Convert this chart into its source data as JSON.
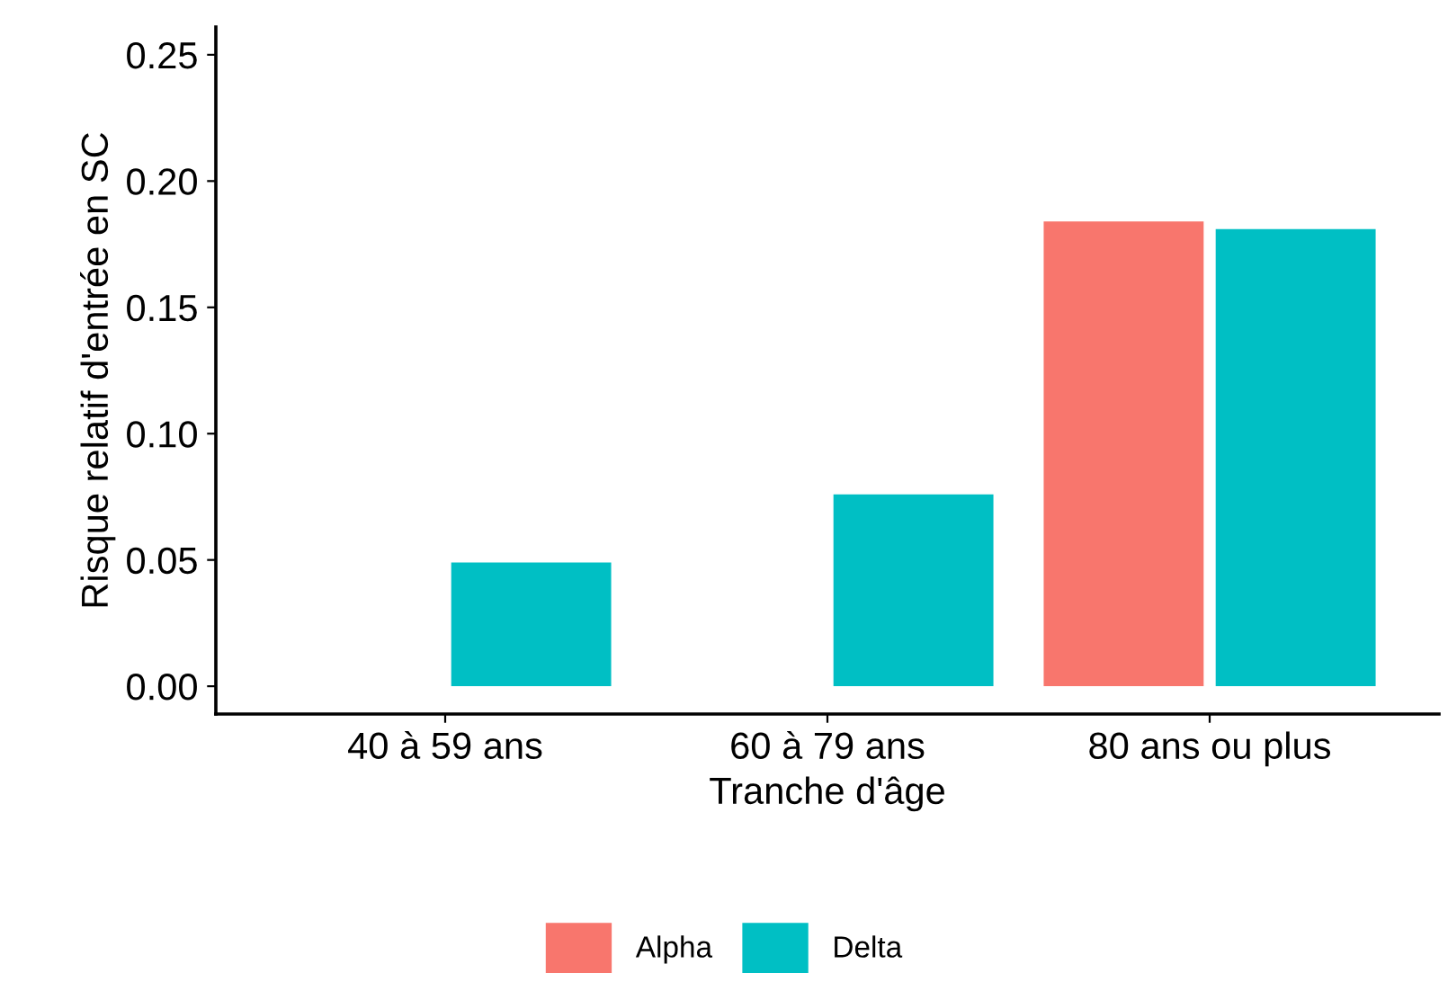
{
  "chart_data": {
    "type": "bar",
    "xlabel": "Tranche d'âge",
    "ylabel": "Risque relatif d'entrée en SC",
    "categories": [
      "40 à 59 ans",
      "60 à 79 ans",
      "80 ans ou plus"
    ],
    "series": [
      {
        "name": "Alpha",
        "color": "#f8766d",
        "values": [
          null,
          null,
          0.184
        ]
      },
      {
        "name": "Delta",
        "color": "#00bfc4",
        "values": [
          0.049,
          0.076,
          0.181
        ]
      }
    ],
    "ylim": [
      -0.011,
      0.261
    ],
    "yticks": [
      {
        "value": 0,
        "label": "0.00"
      },
      {
        "value": 0.05,
        "label": "0.05"
      },
      {
        "value": 0.1,
        "label": "0.10"
      },
      {
        "value": 0.15,
        "label": "0.15"
      },
      {
        "value": 0.2,
        "label": "0.20"
      },
      {
        "value": 0.25,
        "label": "0.25"
      }
    ],
    "grid": false,
    "legend": "bottom"
  }
}
